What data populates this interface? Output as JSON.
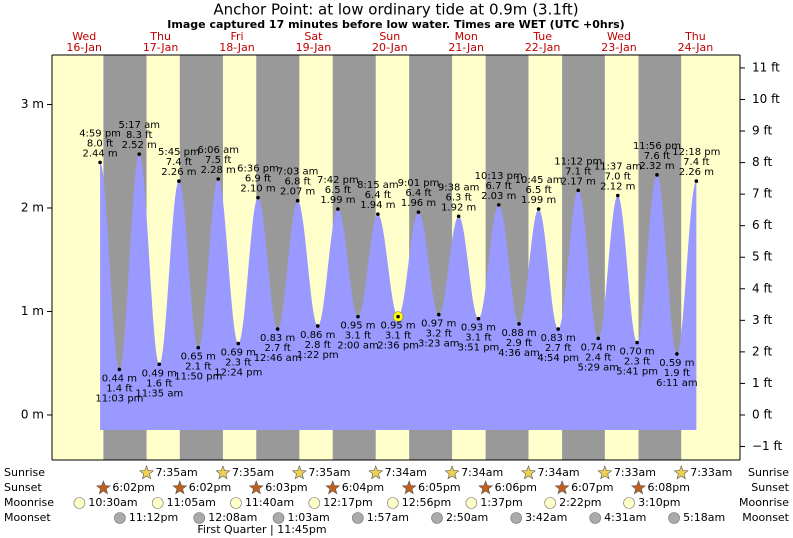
{
  "chart_data": {
    "type": "tide",
    "title": "Anchor Point: at low  ordinary tide at 0.9m (3.1ft)",
    "subtitle": "Image captured 17 minutes before low water. Times are WET (UTC +0hrs)",
    "ylim": [
      -0.435,
      3.478
    ],
    "yticks": [
      {
        "value": 0,
        "label": "0 m"
      },
      {
        "value": 1,
        "label": "1 m"
      },
      {
        "value": 2,
        "label": "2 m"
      },
      {
        "value": 3,
        "label": "3 m"
      }
    ],
    "y2lim": [
      -1.427,
      11.41
    ],
    "y2ticks": [
      {
        "value": -1,
        "label": "−1 ft"
      },
      {
        "value": 0,
        "label": "0 ft"
      },
      {
        "value": 1,
        "label": "1 ft"
      },
      {
        "value": 2,
        "label": "2 ft"
      },
      {
        "value": 3,
        "label": "3 ft"
      },
      {
        "value": 4,
        "label": "4 ft"
      },
      {
        "value": 5,
        "label": "5 ft"
      },
      {
        "value": 6,
        "label": "6 ft"
      },
      {
        "value": 7,
        "label": "7 ft"
      },
      {
        "value": 8,
        "label": "8 ft"
      },
      {
        "value": 9,
        "label": "9 ft"
      },
      {
        "value": 10,
        "label": "10 ft"
      },
      {
        "value": 11,
        "label": "11 ft"
      }
    ],
    "colors": {
      "day": "#ffffcc",
      "night": "#999999",
      "tide": "#9999ff",
      "current": "#ffff00"
    },
    "row_labels": {
      "sunrise": "Sunrise",
      "sunset": "Sunset",
      "moonrise": "Moonrise",
      "moonset": "Moonset"
    },
    "moon_phase": "First Quarter | 11:45pm",
    "days": [
      {
        "weekday": "Wed",
        "date": "16-Jan",
        "sunset": "6:02pm",
        "moonrise": "10:30am",
        "moonset": "11:12pm",
        "tides": [
          {
            "time": "4:59 pm",
            "m": 2.44,
            "m_label": "2.44 m",
            "ft_label": "8.0 ft"
          },
          {
            "time": "11:03 pm",
            "m": 0.44,
            "m_label": "0.44 m",
            "ft_label": "1.4 ft"
          }
        ]
      },
      {
        "weekday": "Thu",
        "date": "17-Jan",
        "sunrise": "7:35am",
        "sunset": "6:02pm",
        "moonrise": "11:05am",
        "tides": [
          {
            "time": "5:17 am",
            "m": 2.52,
            "m_label": "2.52 m",
            "ft_label": "8.3 ft"
          },
          {
            "time": "11:35 am",
            "m": 0.49,
            "m_label": "0.49 m",
            "ft_label": "1.6 ft"
          },
          {
            "time": "5:45 pm",
            "m": 2.26,
            "m_label": "2.26 m",
            "ft_label": "7.4 ft"
          },
          {
            "time": "11:50 pm",
            "m": 0.65,
            "m_label": "0.65 m",
            "ft_label": "2.1 ft"
          }
        ]
      },
      {
        "weekday": "Fri",
        "date": "18-Jan",
        "sunrise": "7:35am",
        "sunset": "6:03pm",
        "moonrise": "11:40am",
        "moonset": "12:08am",
        "tides": [
          {
            "time": "6:06 am",
            "m": 2.28,
            "m_label": "2.28 m",
            "ft_label": "7.5 ft"
          },
          {
            "time": "12:24 pm",
            "m": 0.69,
            "m_label": "0.69 m",
            "ft_label": "2.3 ft"
          },
          {
            "time": "6:36 pm",
            "m": 2.1,
            "m_label": "2.10 m",
            "ft_label": "6.9 ft"
          }
        ]
      },
      {
        "weekday": "Sat",
        "date": "19-Jan",
        "sunrise": "7:35am",
        "sunset": "6:04pm",
        "moonrise": "12:17pm",
        "moonset": "1:03am",
        "tides": [
          {
            "time": "12:46 am",
            "m": 0.83,
            "m_label": "0.83 m",
            "ft_label": "2.7 ft"
          },
          {
            "time": "7:03 am",
            "m": 2.07,
            "m_label": "2.07 m",
            "ft_label": "6.8 ft"
          },
          {
            "time": "1:22 pm",
            "m": 0.86,
            "m_label": "0.86 m",
            "ft_label": "2.8 ft"
          },
          {
            "time": "7:42 pm",
            "m": 1.99,
            "m_label": "1.99 m",
            "ft_label": "6.5 ft"
          }
        ]
      },
      {
        "weekday": "Sun",
        "date": "20-Jan",
        "sunrise": "7:34am",
        "sunset": "6:05pm",
        "moonrise": "12:56pm",
        "moonset": "1:57am",
        "tides": [
          {
            "time": "2:00 am",
            "m": 0.95,
            "m_label": "0.95 m",
            "ft_label": "3.1 ft"
          },
          {
            "time": "8:15 am",
            "m": 1.94,
            "m_label": "1.94 m",
            "ft_label": "6.4 ft"
          },
          {
            "time": "2:36 pm",
            "m": 0.95,
            "m_label": "0.95 m",
            "ft_label": "3.1 ft",
            "highlight": true
          },
          {
            "time": "9:01 pm",
            "m": 1.96,
            "m_label": "1.96 m",
            "ft_label": "6.4 ft"
          }
        ]
      },
      {
        "weekday": "Mon",
        "date": "21-Jan",
        "sunrise": "7:34am",
        "sunset": "6:06pm",
        "moonrise": "1:37pm",
        "moonset": "2:50am",
        "tides": [
          {
            "time": "3:23 am",
            "m": 0.97,
            "m_label": "0.97 m",
            "ft_label": "3.2 ft"
          },
          {
            "time": "9:38 am",
            "m": 1.92,
            "m_label": "1.92 m",
            "ft_label": "6.3 ft"
          },
          {
            "time": "3:51 pm",
            "m": 0.93,
            "m_label": "0.93 m",
            "ft_label": "3.1 ft"
          },
          {
            "time": "10:13 pm",
            "m": 2.03,
            "m_label": "2.03 m",
            "ft_label": "6.7 ft"
          }
        ]
      },
      {
        "weekday": "Tue",
        "date": "22-Jan",
        "sunrise": "7:34am",
        "sunset": "6:07pm",
        "moonrise": "2:22pm",
        "moonset": "3:42am",
        "tides": [
          {
            "time": "4:36 am",
            "m": 0.88,
            "m_label": "0.88 m",
            "ft_label": "2.9 ft"
          },
          {
            "time": "10:45 am",
            "m": 1.99,
            "m_label": "1.99 m",
            "ft_label": "6.5 ft"
          },
          {
            "time": "4:54 pm",
            "m": 0.83,
            "m_label": "0.83 m",
            "ft_label": "2.7 ft"
          },
          {
            "time": "11:12 pm",
            "m": 2.17,
            "m_label": "2.17 m",
            "ft_label": "7.1 ft"
          }
        ]
      },
      {
        "weekday": "Wed",
        "date": "23-Jan",
        "sunrise": "7:33am",
        "sunset": "6:08pm",
        "moonrise": "3:10pm",
        "moonset": "4:31am",
        "tides": [
          {
            "time": "5:29 am",
            "m": 0.74,
            "m_label": "0.74 m",
            "ft_label": "2.4 ft"
          },
          {
            "time": "11:37 am",
            "m": 2.12,
            "m_label": "2.12 m",
            "ft_label": "7.0 ft"
          },
          {
            "time": "5:41 pm",
            "m": 0.7,
            "m_label": "0.70 m",
            "ft_label": "2.3 ft"
          },
          {
            "time": "11:56 pm",
            "m": 2.32,
            "m_label": "2.32 m",
            "ft_label": "7.6 ft"
          }
        ]
      },
      {
        "weekday": "Thu",
        "date": "24-Jan",
        "sunrise": "7:33am",
        "moonset": "5:18am",
        "tides": [
          {
            "time": "6:11 am",
            "m": 0.59,
            "m_label": "0.59 m",
            "ft_label": "1.9 ft"
          },
          {
            "time": "12:18 pm",
            "m": 2.26,
            "m_label": "2.26 m",
            "ft_label": "7.4 ft"
          }
        ]
      }
    ]
  }
}
